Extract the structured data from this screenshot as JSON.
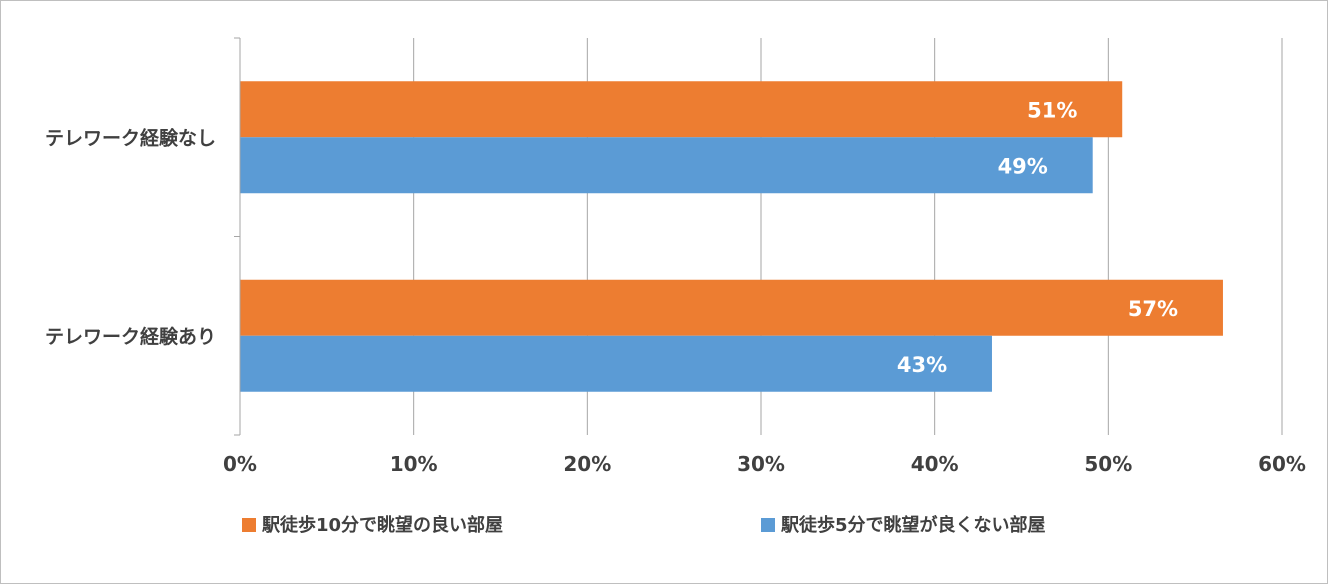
{
  "chart_data": {
    "type": "bar",
    "orientation": "horizontal",
    "title": "",
    "xlabel": "",
    "ylabel": "",
    "xlim": [
      0,
      60
    ],
    "x_ticks": [
      0,
      10,
      20,
      30,
      40,
      50,
      60
    ],
    "x_tick_labels": [
      "0%",
      "10%",
      "20%",
      "30%",
      "40%",
      "50%",
      "60%"
    ],
    "grid": "vertical",
    "legend_position": "bottom",
    "categories": [
      "テレワーク経験なし",
      "テレワーク経験あり"
    ],
    "series": [
      {
        "name": "駅徒歩10分で眺望の良い部屋",
        "color": "#ed7d31",
        "values": [
          50.8,
          56.6
        ],
        "labels": [
          "51%",
          "57%"
        ]
      },
      {
        "name": "駅徒歩5分で眺望が良くない部屋",
        "color": "#5b9bd5",
        "values": [
          49.1,
          43.3
        ],
        "labels": [
          "49%",
          "43%"
        ]
      }
    ]
  }
}
